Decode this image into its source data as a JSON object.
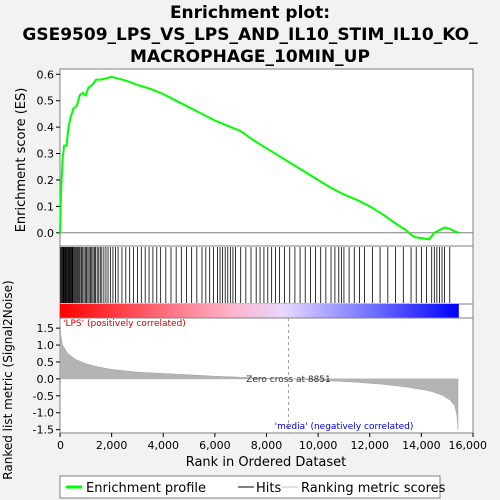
{
  "chart_data": {
    "type": "line",
    "title": [
      "Enrichment plot:",
      "GSE9509_LPS_VS_LPS_AND_IL10_STIM_IL10_KO_",
      "MACROPHAGE_10MIN_UP"
    ],
    "top_panel": {
      "ylabel": "Enrichment score (ES)",
      "ylim": [
        -0.05,
        0.62
      ],
      "yticks": [
        "0.0",
        "0.1",
        "0.2",
        "0.3",
        "0.4",
        "0.5",
        "0.6"
      ],
      "series_name": "Enrichment profile",
      "series_color": "#00ff00",
      "es_points": [
        [
          0,
          0.0
        ],
        [
          40,
          0.15
        ],
        [
          100,
          0.28
        ],
        [
          160,
          0.33
        ],
        [
          250,
          0.33
        ],
        [
          330,
          0.4
        ],
        [
          420,
          0.44
        ],
        [
          520,
          0.47
        ],
        [
          650,
          0.48
        ],
        [
          760,
          0.52
        ],
        [
          880,
          0.53
        ],
        [
          1000,
          0.52
        ],
        [
          1100,
          0.55
        ],
        [
          1250,
          0.56
        ],
        [
          1400,
          0.58
        ],
        [
          1600,
          0.58
        ],
        [
          1800,
          0.585
        ],
        [
          2000,
          0.59
        ],
        [
          2200,
          0.585
        ],
        [
          2600,
          0.575
        ],
        [
          3000,
          0.56
        ],
        [
          3500,
          0.545
        ],
        [
          4000,
          0.525
        ],
        [
          4500,
          0.5
        ],
        [
          5000,
          0.475
        ],
        [
          5500,
          0.45
        ],
        [
          6000,
          0.425
        ],
        [
          6500,
          0.405
        ],
        [
          7000,
          0.385
        ],
        [
          7500,
          0.35
        ],
        [
          8000,
          0.32
        ],
        [
          8500,
          0.29
        ],
        [
          9000,
          0.26
        ],
        [
          9500,
          0.23
        ],
        [
          10000,
          0.2
        ],
        [
          10500,
          0.17
        ],
        [
          11000,
          0.145
        ],
        [
          11500,
          0.125
        ],
        [
          12000,
          0.1
        ],
        [
          12500,
          0.07
        ],
        [
          13000,
          0.035
        ],
        [
          13400,
          0.01
        ],
        [
          13700,
          -0.015
        ],
        [
          14000,
          -0.02
        ],
        [
          14300,
          -0.025
        ],
        [
          14500,
          0.0
        ],
        [
          14700,
          0.01
        ],
        [
          14900,
          0.02
        ],
        [
          15100,
          0.015
        ],
        [
          15300,
          0.005
        ],
        [
          15450,
          0.0
        ]
      ]
    },
    "hits": [
      30,
      60,
      90,
      120,
      150,
      180,
      200,
      230,
      260,
      290,
      320,
      350,
      380,
      410,
      440,
      470,
      500,
      540,
      580,
      620,
      660,
      700,
      740,
      780,
      830,
      880,
      930,
      980,
      1030,
      1080,
      1130,
      1180,
      1230,
      1280,
      1330,
      1380,
      1440,
      1500,
      1560,
      1620,
      1700,
      1780,
      1860,
      1950,
      2050,
      2150,
      2250,
      2400,
      2550,
      2700,
      2850,
      3000,
      3150,
      3300,
      3450,
      3600,
      3750,
      3900,
      4100,
      4300,
      4500,
      4700,
      4900,
      5100,
      5300,
      5500,
      5650,
      5800,
      5950,
      6100,
      6200,
      6300,
      6400,
      6500,
      6600,
      6700,
      6800,
      7000,
      7200,
      7400,
      7600,
      7750,
      7900,
      8050,
      8200,
      8350,
      8500,
      8700,
      8900,
      9100,
      9300,
      9500,
      9700,
      9900,
      10100,
      10300,
      10500,
      10650,
      10800,
      10900,
      11000,
      11200,
      11400,
      11600,
      11800,
      12100,
      12400,
      12700,
      13000,
      13300,
      13600,
      13800,
      14000,
      14200,
      14400,
      14500,
      14600,
      14700,
      14800,
      14900,
      15100
    ],
    "bottom_panel": {
      "ylabel": "Ranked list metric (Signal2Noise)",
      "ylim": [
        -1.6,
        1.8
      ],
      "yticks": [
        "1.5",
        "1.0",
        "0.5",
        "0.0",
        "-0.5",
        "-1.0",
        "-1.5"
      ],
      "metric_points": [
        [
          0,
          1.75
        ],
        [
          30,
          1.3
        ],
        [
          100,
          1.0
        ],
        [
          300,
          0.75
        ],
        [
          600,
          0.58
        ],
        [
          1000,
          0.45
        ],
        [
          1500,
          0.35
        ],
        [
          2000,
          0.28
        ],
        [
          3000,
          0.2
        ],
        [
          4000,
          0.16
        ],
        [
          5000,
          0.12
        ],
        [
          6000,
          0.08
        ],
        [
          7000,
          0.05
        ],
        [
          8000,
          0.02
        ],
        [
          8851,
          0.0
        ],
        [
          9500,
          -0.02
        ],
        [
          10500,
          -0.06
        ],
        [
          11500,
          -0.1
        ],
        [
          12500,
          -0.16
        ],
        [
          13500,
          -0.25
        ],
        [
          14300,
          -0.35
        ],
        [
          14800,
          -0.48
        ],
        [
          15100,
          -0.62
        ],
        [
          15300,
          -0.8
        ],
        [
          15380,
          -1.1
        ],
        [
          15420,
          -1.5
        ]
      ],
      "zero_cross_label": "Zero cross at 8851",
      "zero_cross_x": 8851,
      "pos_label": "'LPS' (positively correlated)",
      "neg_label": "'media' (negatively correlated)"
    },
    "xlabel": "Rank in Ordered Dataset",
    "xlim": [
      0,
      16000
    ],
    "xticks": [
      "0",
      "2,000",
      "4,000",
      "6,000",
      "8,000",
      "10,000",
      "12,000",
      "14,000",
      "16,000"
    ],
    "xtick_values": [
      0,
      2000,
      4000,
      6000,
      8000,
      10000,
      12000,
      14000,
      16000
    ],
    "n_genes": 15450,
    "legend": [
      "Enrichment profile",
      "Hits",
      "Ranking metric scores"
    ]
  }
}
